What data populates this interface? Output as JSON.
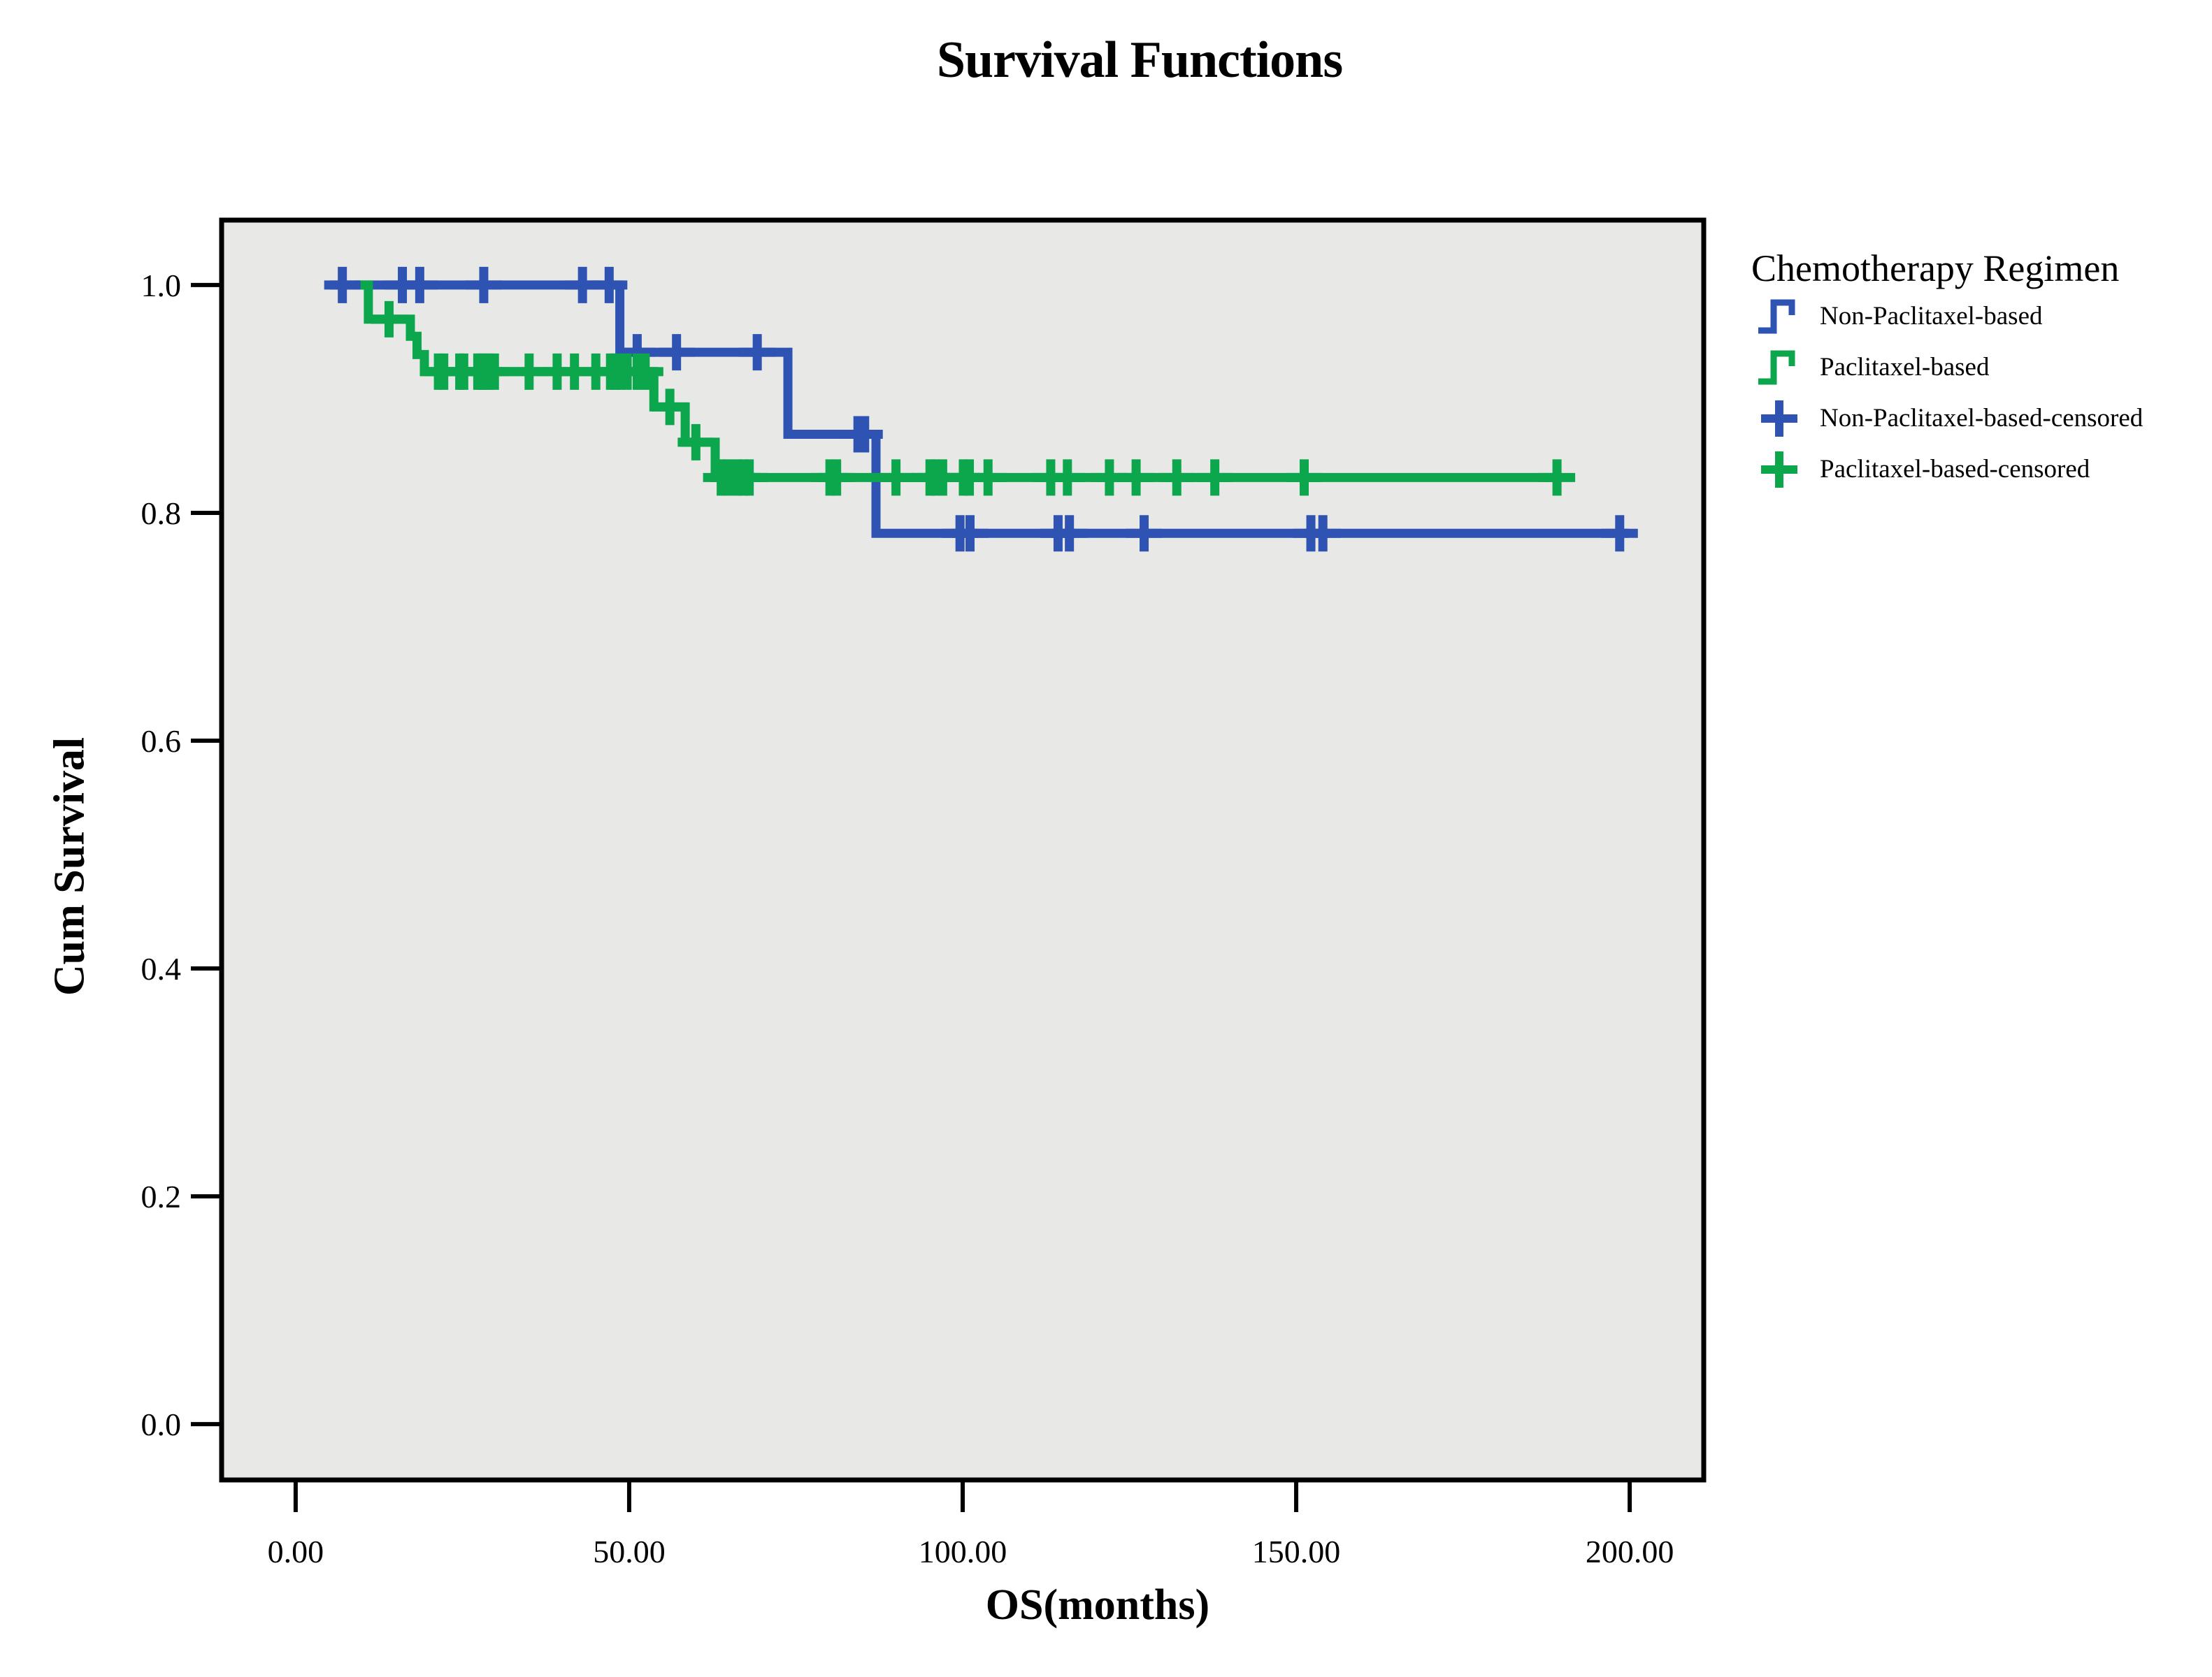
{
  "title": "Survival Functions",
  "axes": {
    "x": {
      "label": "OS(months)",
      "ticks": [
        {
          "label": "0.00",
          "value": 0
        },
        {
          "label": "50.00",
          "value": 50
        },
        {
          "label": "100.00",
          "value": 100
        },
        {
          "label": "150.00",
          "value": 150
        },
        {
          "label": "200.00",
          "value": 200
        }
      ]
    },
    "y": {
      "label": "Cum Survival",
      "ticks": [
        {
          "label": "0.0",
          "value": 0.0
        },
        {
          "label": "0.2",
          "value": 0.2
        },
        {
          "label": "0.4",
          "value": 0.4
        },
        {
          "label": "0.6",
          "value": 0.6
        },
        {
          "label": "0.8",
          "value": 0.8
        },
        {
          "label": "1.0",
          "value": 1.0
        }
      ]
    }
  },
  "legend": {
    "title": "Chemotherapy Regimen",
    "items": [
      {
        "label": "Non-Paclitaxel-based",
        "marker": "step-line",
        "color_key": "blue"
      },
      {
        "label": "Paclitaxel-based",
        "marker": "step-line",
        "color_key": "green"
      },
      {
        "label": "Non-Paclitaxel-based-censored",
        "marker": "plus",
        "color_key": "blue"
      },
      {
        "label": "Paclitaxel-based-censored",
        "marker": "plus",
        "color_key": "green"
      }
    ]
  },
  "colors": {
    "blue": "#2E53B2",
    "green": "#0CA64D",
    "plot_bg": "#E8E8E7",
    "frame": "#000000",
    "text": "#000000"
  },
  "chart_data": {
    "type": "line",
    "subtype": "kaplan-meier-step",
    "title": "Survival Functions",
    "xlabel": "OS(months)",
    "ylabel": "Cum Survival",
    "xlim": [
      -11.1,
      211.1
    ],
    "ylim": [
      -0.049,
      1.057
    ],
    "x_tick_values": [
      0,
      50,
      100,
      150,
      200
    ],
    "y_tick_values": [
      0,
      0.2,
      0.4,
      0.6,
      0.8,
      1.0
    ],
    "grid": false,
    "legend_position": "right",
    "series": [
      {
        "name": "Non-Paclitaxel-based",
        "color_key": "blue",
        "steps": [
          [
            5.2,
            1.0
          ],
          [
            48.6,
            1.0
          ],
          [
            48.6,
            0.941
          ],
          [
            73.8,
            0.941
          ],
          [
            73.8,
            0.869
          ],
          [
            87.0,
            0.869
          ],
          [
            87.0,
            0.782
          ],
          [
            199.9,
            0.782
          ]
        ],
        "censored": [
          [
            7,
            1.0
          ],
          [
            16,
            1.0
          ],
          [
            18.6,
            1.0
          ],
          [
            28.2,
            1.0
          ],
          [
            43,
            1.0
          ],
          [
            47,
            1.0
          ],
          [
            51.2,
            0.941
          ],
          [
            57.1,
            0.941
          ],
          [
            69.2,
            0.941
          ],
          [
            84.3,
            0.869
          ],
          [
            85.3,
            0.869
          ],
          [
            99.6,
            0.782
          ],
          [
            101.1,
            0.782
          ],
          [
            114.3,
            0.782
          ],
          [
            116,
            0.782
          ],
          [
            127.2,
            0.782
          ],
          [
            152.2,
            0.782
          ],
          [
            154,
            0.782
          ],
          [
            198.5,
            0.782
          ]
        ]
      },
      {
        "name": "Paclitaxel-based",
        "color_key": "green",
        "steps": [
          [
            8.8,
            1.0
          ],
          [
            10.9,
            1.0
          ],
          [
            10.9,
            0.97
          ],
          [
            17.2,
            0.97
          ],
          [
            17.2,
            0.955
          ],
          [
            18.2,
            0.955
          ],
          [
            18.2,
            0.939
          ],
          [
            19.3,
            0.939
          ],
          [
            19.3,
            0.924
          ],
          [
            53.7,
            0.924
          ],
          [
            53.7,
            0.893
          ],
          [
            58.4,
            0.893
          ],
          [
            58.4,
            0.862
          ],
          [
            62.9,
            0.862
          ],
          [
            62.9,
            0.831
          ],
          [
            189.5,
            0.831
          ]
        ],
        "censored": [
          [
            14,
            0.97
          ],
          [
            21.4,
            0.924
          ],
          [
            22.2,
            0.924
          ],
          [
            24.6,
            0.924
          ],
          [
            25.2,
            0.924
          ],
          [
            27.3,
            0.924
          ],
          [
            27.8,
            0.924
          ],
          [
            28.3,
            0.924
          ],
          [
            29,
            0.924
          ],
          [
            29.8,
            0.924
          ],
          [
            35,
            0.924
          ],
          [
            39.2,
            0.924
          ],
          [
            41.8,
            0.924
          ],
          [
            45,
            0.924
          ],
          [
            47.2,
            0.924
          ],
          [
            47.9,
            0.924
          ],
          [
            48.6,
            0.924
          ],
          [
            49.7,
            0.924
          ],
          [
            51.2,
            0.924
          ],
          [
            52.4,
            0.924
          ],
          [
            56.1,
            0.893
          ],
          [
            60,
            0.862
          ],
          [
            63.8,
            0.831
          ],
          [
            64.9,
            0.831
          ],
          [
            66.2,
            0.831
          ],
          [
            67.1,
            0.831
          ],
          [
            68,
            0.831
          ],
          [
            80.1,
            0.831
          ],
          [
            81.1,
            0.831
          ],
          [
            90,
            0.831
          ],
          [
            95.1,
            0.831
          ],
          [
            95.9,
            0.831
          ],
          [
            97,
            0.831
          ],
          [
            100.1,
            0.831
          ],
          [
            101,
            0.831
          ],
          [
            103.8,
            0.831
          ],
          [
            113.2,
            0.831
          ],
          [
            115.7,
            0.831
          ],
          [
            122,
            0.831
          ],
          [
            126,
            0.831
          ],
          [
            132.1,
            0.831
          ],
          [
            137.8,
            0.831
          ],
          [
            151.2,
            0.831
          ],
          [
            189.1,
            0.831
          ]
        ]
      }
    ]
  }
}
